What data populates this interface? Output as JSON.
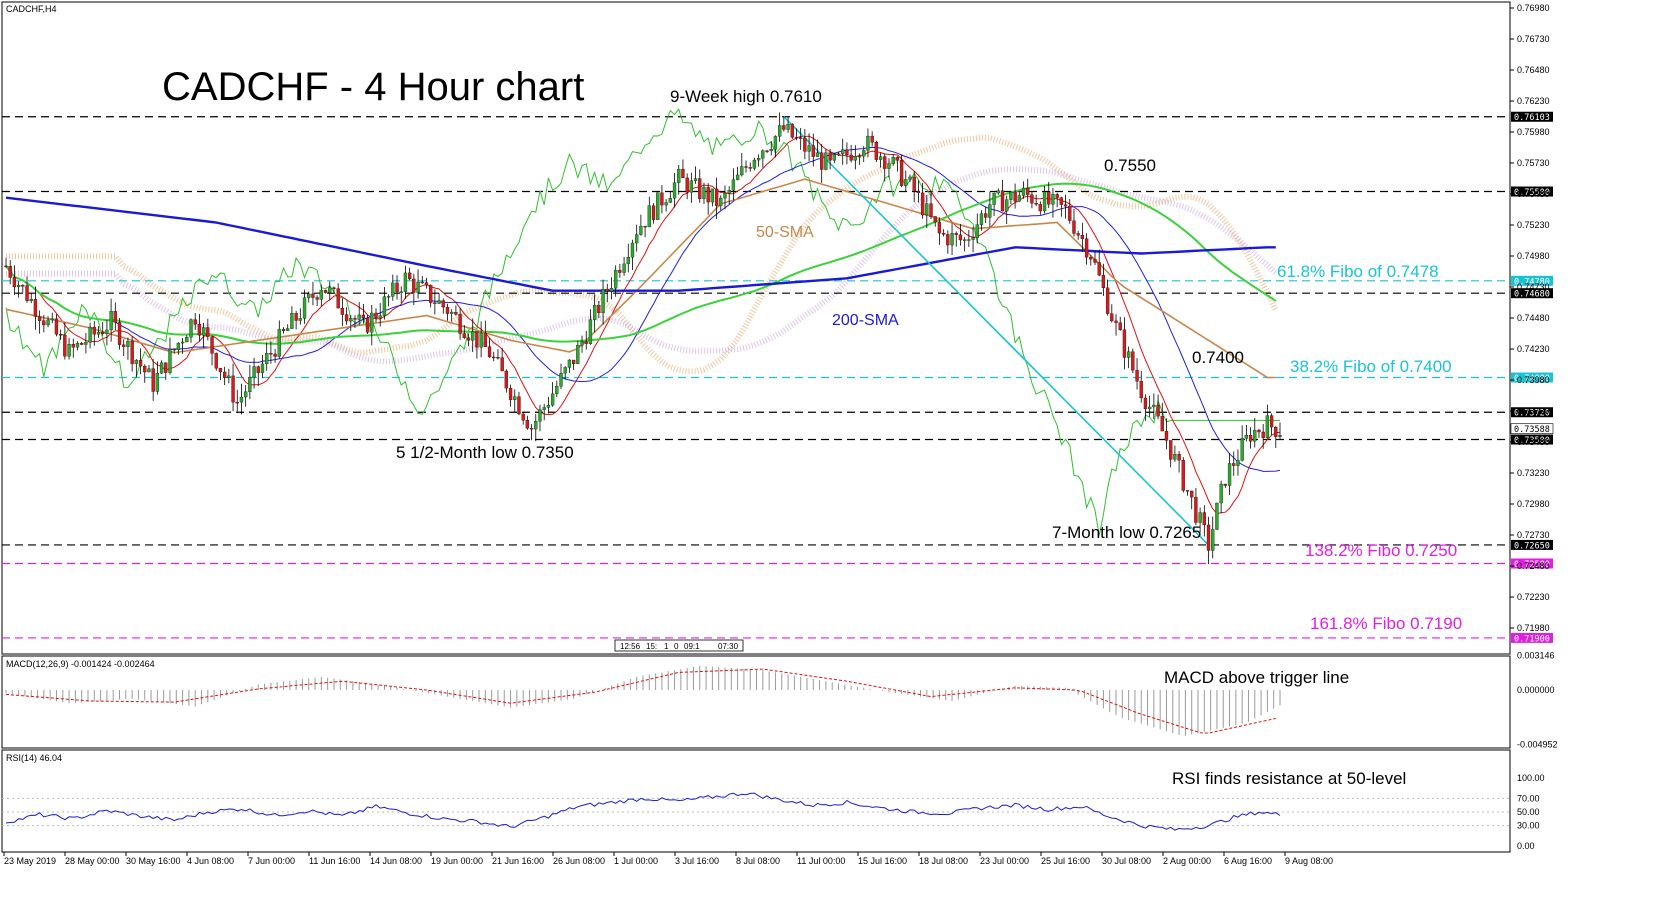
{
  "window": {
    "symbol_tf": "CADCHF,H4"
  },
  "chart_data": [
    {
      "type": "candlestick",
      "title": "CADCHF - 4 Hour chart",
      "ylim": [
        0.7168,
        0.7698
      ],
      "price_scale": [
        "0.76980",
        "0.76730",
        "0.76480",
        "0.76230",
        "0.75980",
        "0.75730",
        "0.75480",
        "0.75230",
        "0.74980",
        "0.74730",
        "0.74480",
        "0.74230",
        "0.73980",
        "0.73730",
        "0.73480",
        "0.73230",
        "0.72980",
        "0.72730",
        "0.72480",
        "0.72230",
        "0.71980"
      ],
      "x_labels": [
        "23 May 2019",
        "28 May 00:00",
        "30 May 16:00",
        "4 Jun 08:00",
        "7 Jun 00:00",
        "11 Jun 16:00",
        "14 Jun 08:00",
        "19 Jun 00:00",
        "21 Jun 16:00",
        "26 Jun 08:00",
        "1 Jul 00:00",
        "3 Jul 16:00",
        "8 Jul 08:00",
        "11 Jul 00:00",
        "15 Jul 16:00",
        "18 Jul 08:00",
        "23 Jul 00:00",
        "25 Jul 16:00",
        "30 Jul 08:00",
        "2 Aug 00:00",
        "6 Aug 16:00",
        "9 Aug 08:00"
      ],
      "price_path": [
        [
          0,
          0.749
        ],
        [
          15,
          0.742
        ],
        [
          25,
          0.7445
        ],
        [
          35,
          0.7395
        ],
        [
          45,
          0.745
        ],
        [
          55,
          0.738
        ],
        [
          65,
          0.743
        ],
        [
          75,
          0.7475
        ],
        [
          85,
          0.744
        ],
        [
          95,
          0.748
        ],
        [
          105,
          0.7455
        ],
        [
          115,
          0.742
        ],
        [
          125,
          0.736
        ],
        [
          135,
          0.7415
        ],
        [
          140,
          0.745
        ],
        [
          150,
          0.752
        ],
        [
          160,
          0.756
        ],
        [
          170,
          0.754
        ],
        [
          178,
          0.758
        ],
        [
          185,
          0.76
        ],
        [
          190,
          0.7585
        ],
        [
          196,
          0.757
        ],
        [
          204,
          0.759
        ],
        [
          210,
          0.7575
        ],
        [
          216,
          0.755
        ],
        [
          222,
          0.7515
        ],
        [
          228,
          0.751
        ],
        [
          234,
          0.754
        ],
        [
          242,
          0.7548
        ],
        [
          252,
          0.7535
        ],
        [
          258,
          0.75
        ],
        [
          264,
          0.744
        ],
        [
          270,
          0.739
        ],
        [
          276,
          0.735
        ],
        [
          282,
          0.73
        ],
        [
          286,
          0.7265
        ],
        [
          290,
          0.732
        ],
        [
          296,
          0.7355
        ],
        [
          300,
          0.7362
        ],
        [
          303,
          0.7358
        ]
      ],
      "candle_count": 304,
      "horizontal_levels": [
        {
          "label": "0.76103",
          "value": 0.76103,
          "color": "#000000",
          "style": "dashed"
        },
        {
          "label": "0.75500",
          "value": 0.755,
          "color": "#000000",
          "style": "dashed"
        },
        {
          "label": "0.74780",
          "value": 0.7478,
          "color": "#18c4d4",
          "style": "dashed"
        },
        {
          "label": "0.74680",
          "value": 0.7468,
          "color": "#000000",
          "style": "dashed"
        },
        {
          "label": "0.74000",
          "value": 0.74,
          "color": "#18c4d4",
          "style": "dashed"
        },
        {
          "label": "0.73720",
          "value": 0.7372,
          "color": "#000000",
          "style": "dashed"
        },
        {
          "label": "0.73500",
          "value": 0.735,
          "color": "#000000",
          "style": "dashed"
        },
        {
          "label": "0.72650",
          "value": 0.7265,
          "color": "#000000",
          "style": "dashed"
        },
        {
          "label": "0.72500",
          "value": 0.725,
          "color": "#e020e0",
          "style": "dashed"
        },
        {
          "label": "0.71900",
          "value": 0.719,
          "color": "#e020e0",
          "style": "dashed"
        }
      ],
      "current_price": "0.73588",
      "annotations": [
        {
          "text": "9-Week high 0.7610",
          "color": "#000000"
        },
        {
          "text": "0.7550",
          "color": "#000000"
        },
        {
          "text": "61.8% Fibo of 0.7478",
          "color": "#18c4d4"
        },
        {
          "text": "38.2% Fibo of 0.7400",
          "color": "#18c4d4"
        },
        {
          "text": "0.7400",
          "color": "#000000"
        },
        {
          "text": "5 1/2-Month low 0.7350",
          "color": "#000000"
        },
        {
          "text": "7-Month low 0.7265",
          "color": "#000000"
        },
        {
          "text": "138.2% Fibo 0.7250",
          "color": "#e020e0"
        },
        {
          "text": "161.8% Fibo 0.7190",
          "color": "#e020e0"
        },
        {
          "text": "50-SMA",
          "color": "#c8874a"
        },
        {
          "text": "200-SMA",
          "color": "#1a1ad6"
        }
      ],
      "time_marker_labels": [
        "12:56",
        "15:",
        "1",
        "0",
        "09:1",
        "07:30"
      ],
      "series": [
        {
          "name": "50-SMA",
          "color": "#c8874a",
          "values": [
            [
              0,
              0.7455
            ],
            [
              20,
              0.744
            ],
            [
              40,
              0.742
            ],
            [
              60,
              0.743
            ],
            [
              80,
              0.744
            ],
            [
              100,
              0.745
            ],
            [
              120,
              0.743
            ],
            [
              135,
              0.742
            ],
            [
              150,
              0.747
            ],
            [
              170,
              0.754
            ],
            [
              190,
              0.756
            ],
            [
              210,
              0.754
            ],
            [
              230,
              0.752
            ],
            [
              250,
              0.7525
            ],
            [
              265,
              0.7475
            ],
            [
              300,
              0.74
            ]
          ]
        },
        {
          "name": "200-SMA",
          "color": "#1a1ad6",
          "values": [
            [
              0,
              0.7545
            ],
            [
              50,
              0.7525
            ],
            [
              100,
              0.749
            ],
            [
              130,
              0.747
            ],
            [
              160,
              0.747
            ],
            [
              200,
              0.748
            ],
            [
              240,
              0.7505
            ],
            [
              270,
              0.75
            ],
            [
              300,
              0.7505
            ]
          ]
        }
      ],
      "indicator_colors": {
        "sma_fast": "#3ad23a",
        "tenkan": "#e01010",
        "kijun": "#2020e0",
        "chikou": "#30c030",
        "cloud_a": "#e8b27a",
        "cloud_b": "#c9a0d9",
        "trendline": "#18c4d4"
      }
    },
    {
      "type": "histogram",
      "title": "MACD(12,26,9) -0.001424 -0.002464",
      "annotation": "MACD above trigger line",
      "y_scale": [
        "0.003146",
        "0.000000",
        "-0.004952"
      ],
      "ylim": [
        -0.004952,
        0.003146
      ],
      "values": [
        [
          0,
          -0.0003
        ],
        [
          15,
          -0.0012
        ],
        [
          30,
          -0.0008
        ],
        [
          45,
          -0.0015
        ],
        [
          60,
          0.0005
        ],
        [
          75,
          0.0012
        ],
        [
          90,
          0.0004
        ],
        [
          105,
          -0.0006
        ],
        [
          120,
          -0.0016
        ],
        [
          135,
          -0.0008
        ],
        [
          150,
          0.0012
        ],
        [
          165,
          0.0022
        ],
        [
          180,
          0.0018
        ],
        [
          195,
          0.0008
        ],
        [
          210,
          -0.0002
        ],
        [
          225,
          -0.001
        ],
        [
          240,
          0.0004
        ],
        [
          252,
          0.0002
        ],
        [
          265,
          -0.0025
        ],
        [
          280,
          -0.0042
        ],
        [
          295,
          -0.003
        ],
        [
          303,
          -0.0014
        ]
      ],
      "signal": [
        [
          0,
          -0.0004
        ],
        [
          20,
          -0.001
        ],
        [
          40,
          -0.0011
        ],
        [
          60,
          0.0001
        ],
        [
          80,
          0.0008
        ],
        [
          100,
          0.0
        ],
        [
          120,
          -0.0012
        ],
        [
          140,
          -0.0002
        ],
        [
          160,
          0.0016
        ],
        [
          180,
          0.0019
        ],
        [
          200,
          0.0008
        ],
        [
          220,
          -0.0006
        ],
        [
          240,
          0.0002
        ],
        [
          255,
          0.0
        ],
        [
          270,
          -0.0022
        ],
        [
          285,
          -0.004
        ],
        [
          303,
          -0.0025
        ]
      ],
      "signal_color": "#e01010"
    },
    {
      "type": "line",
      "title": "RSI(14) 46.04",
      "annotation": "RSI finds resistance at 50-level",
      "y_scale": [
        "100.00",
        "70.00",
        "50.00",
        "30.00",
        "0.00"
      ],
      "ylim": [
        0,
        100
      ],
      "levels": [
        70,
        50,
        30
      ],
      "values": [
        [
          0,
          35
        ],
        [
          8,
          46
        ],
        [
          16,
          40
        ],
        [
          24,
          52
        ],
        [
          32,
          44
        ],
        [
          40,
          38
        ],
        [
          48,
          50
        ],
        [
          56,
          55
        ],
        [
          64,
          45
        ],
        [
          72,
          52
        ],
        [
          80,
          44
        ],
        [
          88,
          58
        ],
        [
          96,
          48
        ],
        [
          104,
          40
        ],
        [
          112,
          36
        ],
        [
          120,
          28
        ],
        [
          128,
          42
        ],
        [
          136,
          58
        ],
        [
          144,
          64
        ],
        [
          152,
          70
        ],
        [
          160,
          66
        ],
        [
          168,
          72
        ],
        [
          176,
          78
        ],
        [
          184,
          68
        ],
        [
          192,
          60
        ],
        [
          200,
          64
        ],
        [
          208,
          56
        ],
        [
          216,
          50
        ],
        [
          224,
          48
        ],
        [
          232,
          56
        ],
        [
          240,
          60
        ],
        [
          248,
          54
        ],
        [
          256,
          58
        ],
        [
          262,
          44
        ],
        [
          270,
          30
        ],
        [
          278,
          24
        ],
        [
          286,
          30
        ],
        [
          292,
          42
        ],
        [
          298,
          50
        ],
        [
          303,
          46
        ]
      ],
      "line_color": "#1a1ad6"
    }
  ]
}
